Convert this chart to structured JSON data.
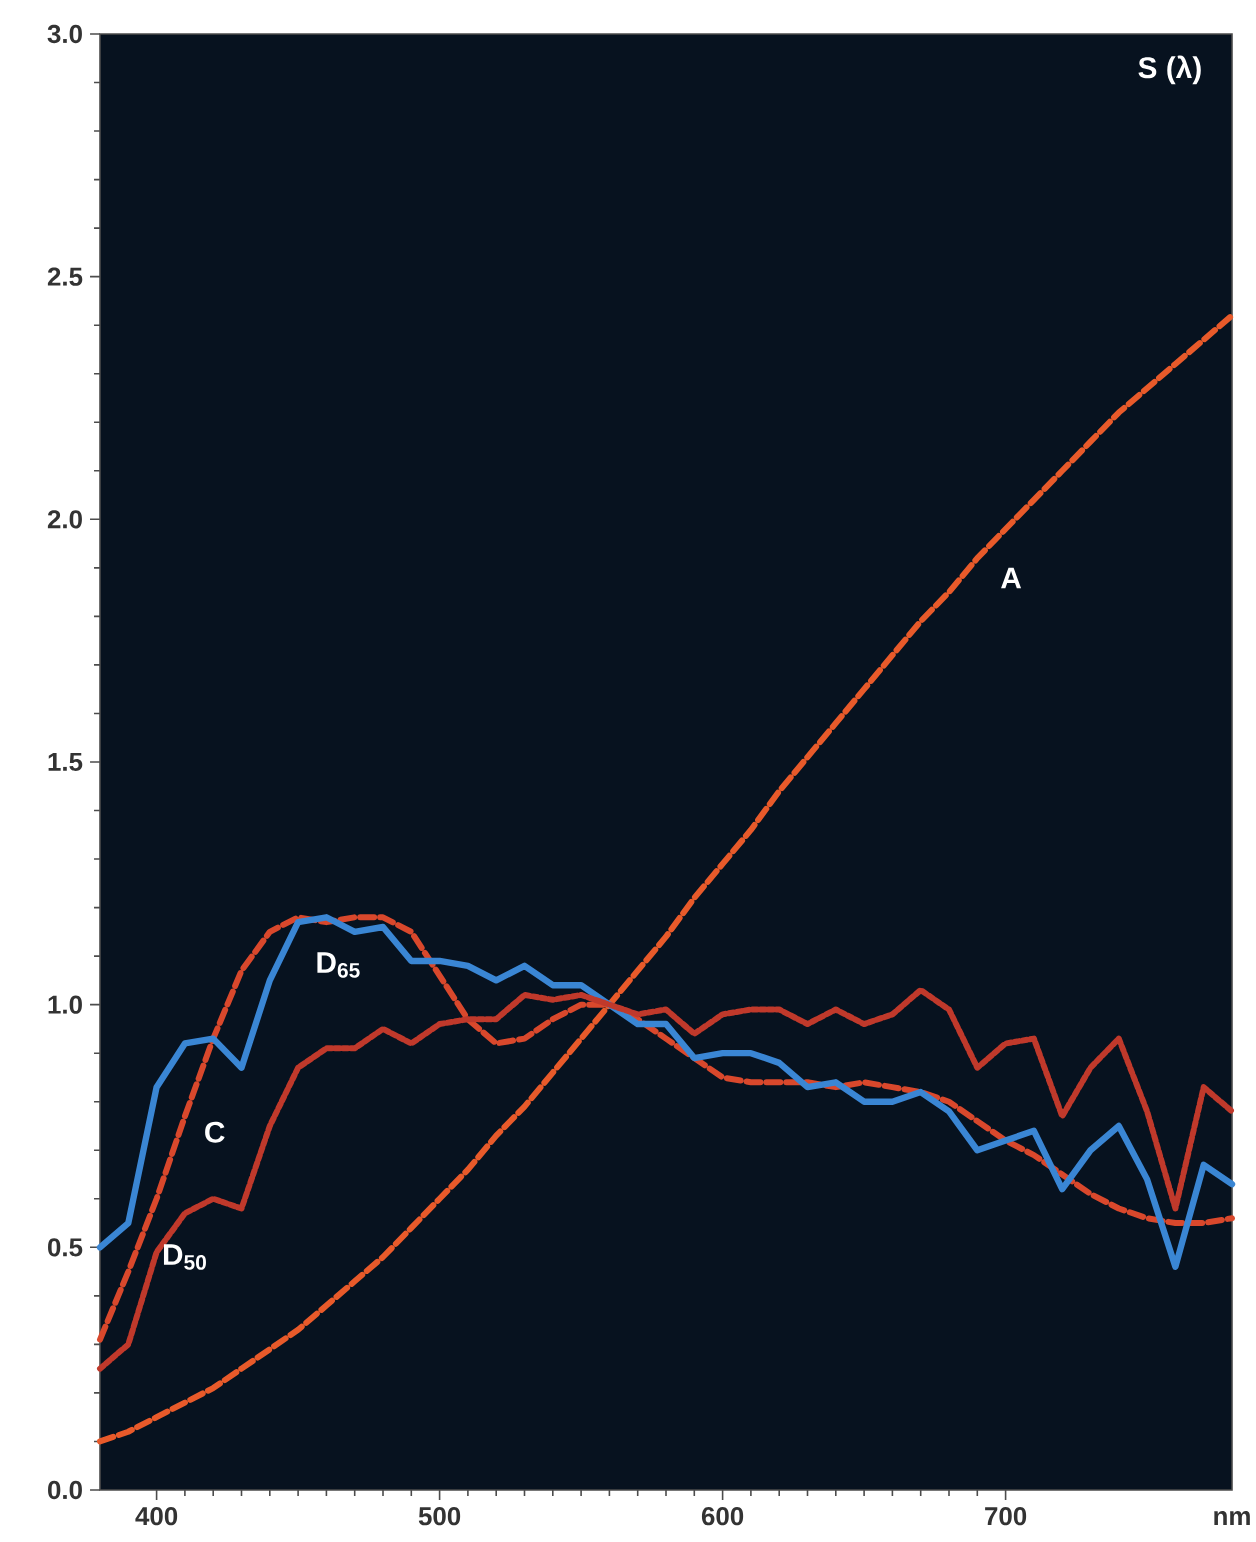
{
  "chart_data": {
    "type": "line",
    "ylabel": "S (λ)",
    "xlabel": "nm",
    "x": [
      380,
      390,
      400,
      410,
      420,
      430,
      440,
      450,
      460,
      470,
      480,
      490,
      500,
      510,
      520,
      530,
      540,
      550,
      560,
      570,
      580,
      590,
      600,
      610,
      620,
      630,
      640,
      650,
      660,
      670,
      680,
      690,
      700,
      710,
      720,
      730,
      740,
      750,
      760,
      770,
      780
    ],
    "xlim": [
      380,
      780
    ],
    "ylim": [
      0,
      3
    ],
    "xticks": [
      400,
      500,
      600,
      700
    ],
    "yticks": [
      {
        "value": 0,
        "label": "0.0"
      },
      0.5,
      {
        "value": 1,
        "label": "1.0"
      },
      1.5,
      {
        "value": 2,
        "label": "2.0"
      },
      2.5,
      {
        "value": 3,
        "label": "3.0"
      }
    ],
    "grid": false,
    "legend": false,
    "marker": "none",
    "series": [
      {
        "name": "A",
        "color": "#e85a2a",
        "line_style": "dashed",
        "values": [
          0.1,
          0.12,
          0.15,
          0.18,
          0.21,
          0.25,
          0.29,
          0.33,
          0.38,
          0.43,
          0.48,
          0.54,
          0.6,
          0.66,
          0.73,
          0.79,
          0.86,
          0.93,
          1.0,
          1.07,
          1.14,
          1.22,
          1.29,
          1.36,
          1.44,
          1.51,
          1.58,
          1.65,
          1.72,
          1.79,
          1.85,
          1.92,
          1.98,
          2.04,
          2.1,
          2.16,
          2.22,
          2.27,
          2.32,
          2.37,
          2.42
        ]
      },
      {
        "name": "C",
        "color": "#d9482c",
        "line_style": "dashed",
        "values": [
          0.31,
          0.45,
          0.6,
          0.77,
          0.93,
          1.07,
          1.15,
          1.18,
          1.17,
          1.18,
          1.18,
          1.15,
          1.06,
          0.97,
          0.92,
          0.93,
          0.97,
          1.0,
          1.0,
          0.97,
          0.93,
          0.89,
          0.85,
          0.84,
          0.84,
          0.84,
          0.83,
          0.84,
          0.83,
          0.82,
          0.8,
          0.76,
          0.72,
          0.69,
          0.65,
          0.61,
          0.58,
          0.56,
          0.55,
          0.55,
          0.56
        ]
      },
      {
        "name": "D$_{65}$",
        "color": "#3a86d4",
        "line_style": "solid",
        "values": [
          0.5,
          0.55,
          0.83,
          0.92,
          0.93,
          0.87,
          1.05,
          1.17,
          1.18,
          1.15,
          1.16,
          1.09,
          1.09,
          1.08,
          1.05,
          1.08,
          1.04,
          1.04,
          1.0,
          0.96,
          0.96,
          0.89,
          0.9,
          0.9,
          0.88,
          0.83,
          0.84,
          0.8,
          0.8,
          0.82,
          0.78,
          0.7,
          0.72,
          0.74,
          0.62,
          0.7,
          0.75,
          0.64,
          0.46,
          0.67,
          0.63
        ]
      },
      {
        "name": "D$_{50}$",
        "color": "#c0392b",
        "line_style": "dotted",
        "values": [
          0.25,
          0.3,
          0.49,
          0.57,
          0.6,
          0.58,
          0.75,
          0.87,
          0.91,
          0.91,
          0.95,
          0.92,
          0.96,
          0.97,
          0.97,
          1.02,
          1.01,
          1.02,
          1.0,
          0.98,
          0.99,
          0.94,
          0.98,
          0.99,
          0.99,
          0.96,
          0.99,
          0.96,
          0.98,
          1.03,
          0.99,
          0.87,
          0.92,
          0.93,
          0.77,
          0.87,
          0.93,
          0.78,
          0.58,
          0.83,
          0.78
        ]
      }
    ]
  }
}
